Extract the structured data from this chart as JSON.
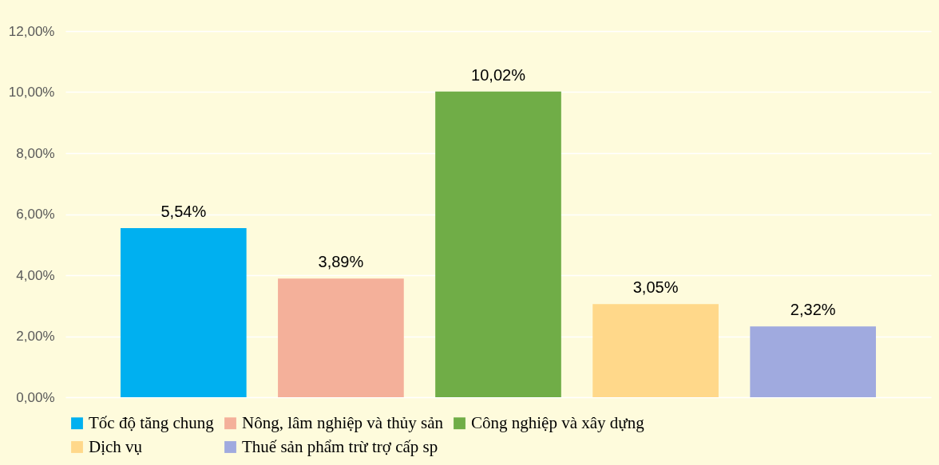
{
  "chart_data": {
    "type": "bar",
    "categories": [
      null,
      null,
      null,
      null,
      null
    ],
    "series": [
      {
        "name": "Tốc độ tăng chung",
        "color": "#00b0f0",
        "values": [
          5.54,
          null,
          null,
          null,
          null
        ],
        "value_labels": [
          "5,54%",
          null,
          null,
          null,
          null
        ]
      },
      {
        "name": "Nông, lâm nghiệp và thủy sản",
        "color": "#f4b09a",
        "values": [
          null,
          3.89,
          null,
          null,
          null
        ],
        "value_labels": [
          null,
          "3,89%",
          null,
          null,
          null
        ]
      },
      {
        "name": "Công nghiệp và xây dựng",
        "color": "#70ad47",
        "values": [
          null,
          null,
          10.02,
          null,
          null
        ],
        "value_labels": [
          null,
          null,
          "10,02%",
          null,
          null
        ]
      },
      {
        "name": "Dịch vụ",
        "color": "#ffd88a",
        "values": [
          null,
          null,
          null,
          3.05,
          null
        ],
        "value_labels": [
          null,
          null,
          null,
          "3,05%",
          null
        ]
      },
      {
        "name": "Thuế sản phẩm trừ trợ cấp sp",
        "color": "#a0aadf",
        "values": [
          null,
          null,
          null,
          null,
          2.32
        ],
        "value_labels": [
          null,
          null,
          null,
          null,
          "2,32%"
        ]
      }
    ],
    "ylim": [
      0,
      12
    ],
    "yticks": [
      {
        "value": 0,
        "label": "0,00%"
      },
      {
        "value": 2,
        "label": "2,00%"
      },
      {
        "value": 4,
        "label": "4,00%"
      },
      {
        "value": 6,
        "label": "6,00%"
      },
      {
        "value": 8,
        "label": "8,00%"
      },
      {
        "value": 10,
        "label": "10,00%"
      },
      {
        "value": 12,
        "label": "12,00%"
      }
    ],
    "grid": "y",
    "legend": "bottom"
  }
}
